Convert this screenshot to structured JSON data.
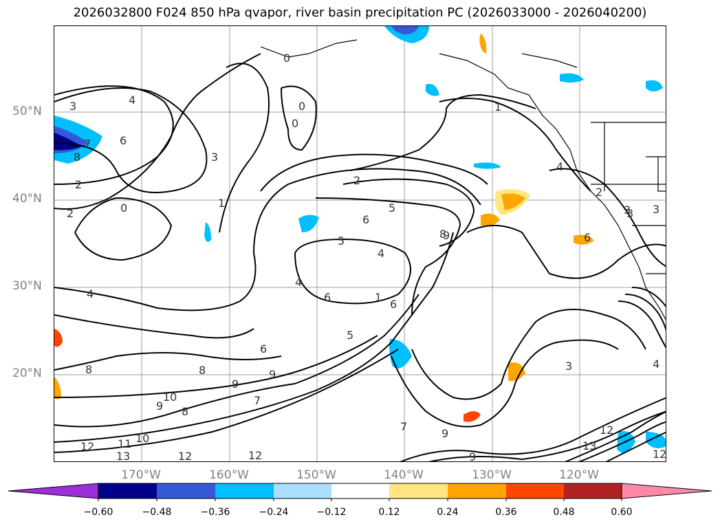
{
  "title": "2026032800 F024 850 hPa qvapor, river basin precipitation PC (2026033000 - 2026040200)",
  "lat_labels": [
    "50°N",
    "40°N",
    "30°N",
    "20°N"
  ],
  "lon_labels": [
    "170°W",
    "160°W",
    "150°W",
    "140°W",
    "130°W",
    "120°W"
  ],
  "colorbar": {
    "ticks": [
      "−0.60",
      "−0.48",
      "−0.36",
      "−0.24",
      "−0.12",
      "0.12",
      "0.24",
      "0.36",
      "0.48",
      "0.60"
    ],
    "colors": [
      "#9b30d6",
      "#00008b",
      "#3658d6",
      "#00bfff",
      "#aadfff",
      "#ffffff",
      "#ffe680",
      "#ffa500",
      "#ff4500",
      "#b22222",
      "#ff88aa"
    ]
  },
  "contour_labels": [
    "3",
    "4",
    "6",
    "7",
    "8",
    "2",
    "2",
    "0",
    "1",
    "3",
    "4",
    "5",
    "6",
    "5",
    "4",
    "9",
    "6",
    "4",
    "6",
    "5",
    "2",
    "1",
    "4",
    "3",
    "8",
    "9",
    "8",
    "10",
    "9",
    "7",
    "6",
    "9",
    "8",
    "9",
    "13",
    "12",
    "12",
    "11",
    "10",
    "12",
    "7",
    "9",
    "3",
    "12",
    "13",
    "12",
    "4",
    "3",
    "0",
    "0",
    "0",
    "2",
    "3",
    "6",
    "8",
    "1"
  ]
}
